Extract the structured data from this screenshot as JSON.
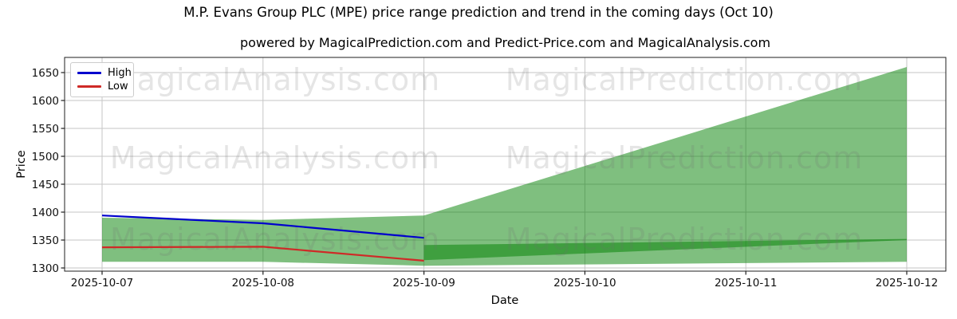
{
  "figure": {
    "title": "M.P. Evans Group PLC (MPE) price range prediction and trend in the coming days (Oct 10)",
    "subtitle": "powered by MagicalPrediction.com and Predict-Price.com and MagicalAnalysis.com"
  },
  "chart_data": {
    "type": "line",
    "title": "M.P. Evans Group PLC (MPE) price range prediction and trend in the coming days (Oct 10)",
    "subtitle": "powered by MagicalPrediction.com and Predict-Price.com and MagicalAnalysis.com",
    "xlabel": "Date",
    "ylabel": "Price",
    "x": [
      "2025-10-07",
      "2025-10-08",
      "2025-10-09",
      "2025-10-10",
      "2025-10-11",
      "2025-10-12"
    ],
    "yticks": [
      1300,
      1350,
      1400,
      1450,
      1500,
      1550,
      1600,
      1650
    ],
    "ylim": [
      1294,
      1677
    ],
    "grid": true,
    "legend_position": "upper left",
    "series": [
      {
        "name": "High",
        "color": "#0000cd",
        "x": [
          "2025-10-07",
          "2025-10-08",
          "2025-10-09"
        ],
        "values": [
          1394,
          1380,
          1354
        ]
      },
      {
        "name": "Low",
        "color": "#cf2a27",
        "x": [
          "2025-10-07",
          "2025-10-08",
          "2025-10-09"
        ],
        "values": [
          1337,
          1338,
          1313
        ]
      }
    ],
    "bands": [
      {
        "name": "historical-range-band",
        "color": "#008000",
        "alpha": 0.5,
        "x": [
          "2025-10-07",
          "2025-10-08",
          "2025-10-09"
        ],
        "upper": [
          1390,
          1386,
          1394
        ],
        "lower": [
          1311,
          1311,
          1304
        ]
      },
      {
        "name": "forecast-high-fan",
        "color": "#008000",
        "alpha": 0.5,
        "x": [
          "2025-10-09",
          "2025-10-12"
        ],
        "upper": [
          1394,
          1660
        ],
        "lower": [
          1314,
          1350
        ]
      },
      {
        "name": "forecast-low-fan",
        "color": "#008000",
        "alpha": 0.5,
        "x": [
          "2025-10-09",
          "2025-10-12"
        ],
        "upper": [
          1341,
          1352
        ],
        "lower": [
          1304,
          1311
        ]
      }
    ],
    "watermarks": {
      "left": "MagicalAnalysis.com",
      "right": "MagicalPrediction.com"
    }
  }
}
